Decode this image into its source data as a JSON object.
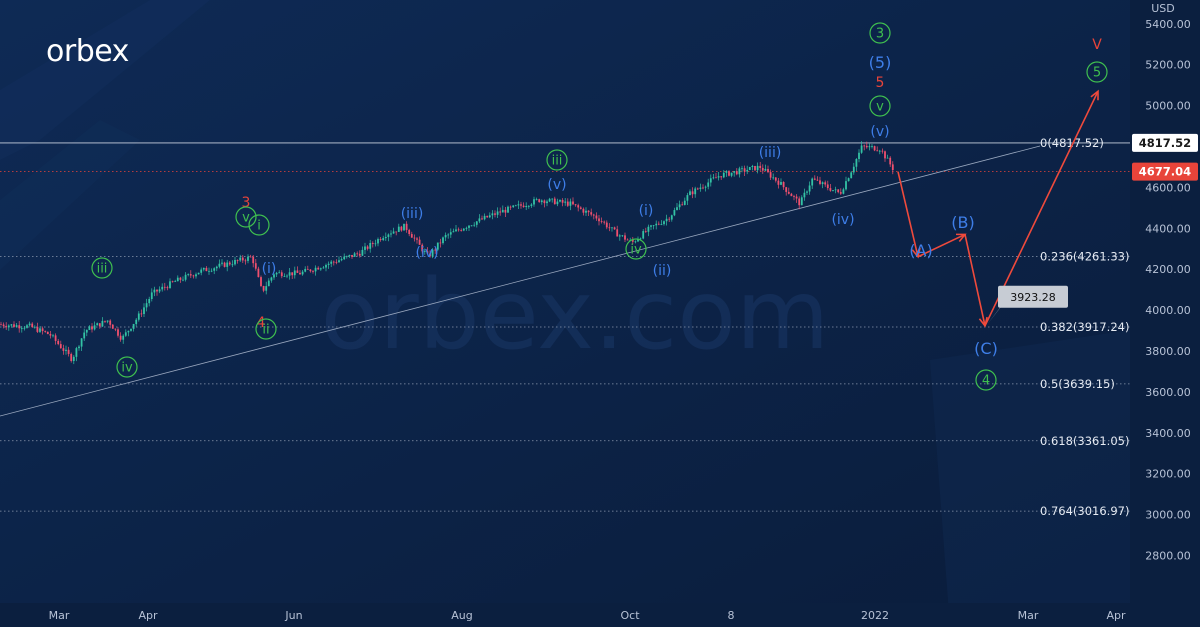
{
  "brand": "orbex",
  "watermark": "orbex.com",
  "chart_data": {
    "type": "line",
    "currency": "USD",
    "y_ticks": [
      "5400.00",
      "5200.00",
      "5000.00",
      "4800.00",
      "4600.00",
      "4400.00",
      "4200.00",
      "4000.00",
      "3800.00",
      "3600.00",
      "3400.00",
      "3200.00",
      "3000.00",
      "2800.00"
    ],
    "x_ticks": [
      "Mar",
      "Apr",
      "Jun",
      "Aug",
      "Oct",
      "8",
      "2022",
      "Mar",
      "Apr"
    ],
    "ylim": [
      2650,
      5500
    ],
    "price_tags": [
      {
        "value": 4817.52,
        "label": "4817.52",
        "color": "#ffffff"
      },
      {
        "value": 4677.04,
        "label": "4677.04",
        "color": "#e8443a"
      }
    ],
    "fib_levels": [
      {
        "ratio": "0",
        "price": 4817.52,
        "label": "0(4817.52)"
      },
      {
        "ratio": "0.236",
        "price": 4261.33,
        "label": "0.236(4261.33)"
      },
      {
        "ratio": "0.382",
        "price": 3917.24,
        "label": "0.382(3917.24)"
      },
      {
        "ratio": "0.5",
        "price": 3639.15,
        "label": "0.5(3639.15)"
      },
      {
        "ratio": "0.618",
        "price": 3361.05,
        "label": "0.618(3361.05)"
      },
      {
        "ratio": "0.764",
        "price": 3016.97,
        "label": "0.764(3016.97)"
      }
    ],
    "forecast_path": [
      {
        "date": "2021-12-30",
        "price": 4677
      },
      {
        "date": "2022-01-15",
        "price": 4261,
        "label": "(A)"
      },
      {
        "date": "2022-01-30",
        "price": 4370,
        "label": "(B)"
      },
      {
        "date": "2022-02-07",
        "price": 3923.28,
        "label": "(C)"
      },
      {
        "date": "2022-03-14",
        "price": 5070,
        "label": "5"
      }
    ],
    "forecast_target_label": "3923.28",
    "wave_labels": [
      {
        "text": "iii",
        "color": "green",
        "circled": true
      },
      {
        "text": "iv",
        "color": "green",
        "circled": true
      },
      {
        "text": "3",
        "color": "red"
      },
      {
        "text": "v",
        "color": "green",
        "circled": true
      },
      {
        "text": "i",
        "color": "green",
        "circled": true
      },
      {
        "text": "(i)",
        "color": "blue"
      },
      {
        "text": "4",
        "color": "red"
      },
      {
        "text": "ii",
        "color": "green",
        "circled": true
      },
      {
        "text": "(iii)",
        "color": "blue"
      },
      {
        "text": "(iv)",
        "color": "blue"
      },
      {
        "text": "iii",
        "color": "green",
        "circled": true
      },
      {
        "text": "(v)",
        "color": "blue"
      },
      {
        "text": "(i)",
        "color": "blue"
      },
      {
        "text": "iv",
        "color": "green",
        "circled": true
      },
      {
        "text": "(ii)",
        "color": "blue"
      },
      {
        "text": "(iii)",
        "color": "blue"
      },
      {
        "text": "(iv)",
        "color": "blue"
      },
      {
        "text": "3",
        "color": "green",
        "circled": true
      },
      {
        "text": "(5)",
        "color": "blue"
      },
      {
        "text": "5",
        "color": "red"
      },
      {
        "text": "v",
        "color": "green",
        "circled": true
      },
      {
        "text": "(v)",
        "color": "blue"
      },
      {
        "text": "(A)",
        "color": "blue"
      },
      {
        "text": "(B)",
        "color": "blue"
      },
      {
        "text": "(C)",
        "color": "blue"
      },
      {
        "text": "4",
        "color": "green",
        "circled": true
      },
      {
        "text": "V",
        "color": "red"
      },
      {
        "text": "5",
        "color": "green",
        "circled": true
      }
    ]
  }
}
